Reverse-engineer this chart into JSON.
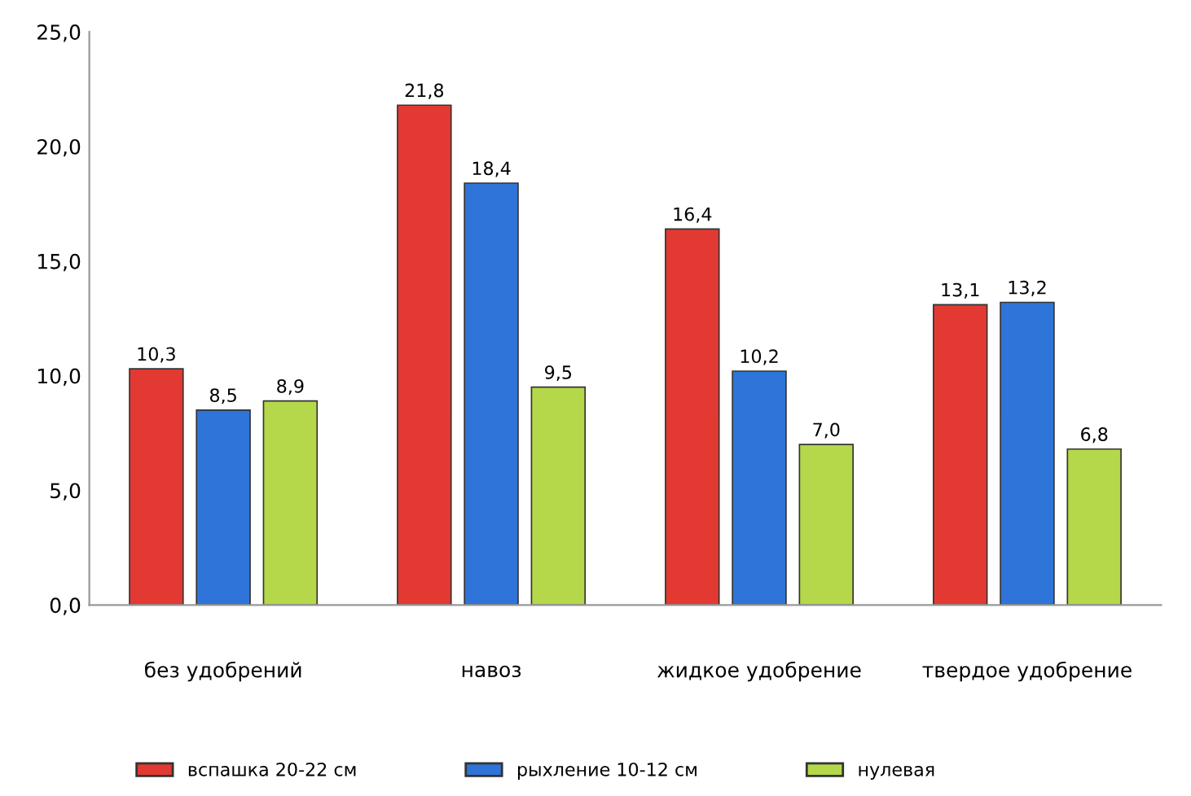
{
  "chart_data": {
    "type": "bar",
    "categories": [
      "без удобрений",
      "навоз",
      "жидкое удобрение",
      "твердое удобрение"
    ],
    "series": [
      {
        "name": "вспашка 20-22 см",
        "color": "#e23a32",
        "values": [
          10.3,
          21.8,
          16.4,
          13.1
        ],
        "value_labels": [
          "10,3",
          "21,8",
          "16,4",
          "13,1"
        ]
      },
      {
        "name": "рыхление 10-12 см",
        "color": "#2f74d8",
        "values": [
          8.5,
          18.4,
          10.2,
          13.2
        ],
        "value_labels": [
          "8,5",
          "18,4",
          "10,2",
          "13,2"
        ]
      },
      {
        "name": "нулевая",
        "color": "#b4d84a",
        "values": [
          8.9,
          9.5,
          7.0,
          6.8
        ],
        "value_labels": [
          "8,9",
          "9,5",
          "7,0",
          "6,8"
        ]
      }
    ],
    "ylim": [
      0,
      25
    ],
    "yticks": [
      {
        "value": 0,
        "label": "0,0"
      },
      {
        "value": 5,
        "label": "5,0"
      },
      {
        "value": 10,
        "label": "10,0"
      },
      {
        "value": 15,
        "label": "15,0"
      },
      {
        "value": 20,
        "label": "20,0"
      },
      {
        "value": 25,
        "label": "25,0"
      }
    ],
    "grid": false,
    "legend": "bottom"
  }
}
